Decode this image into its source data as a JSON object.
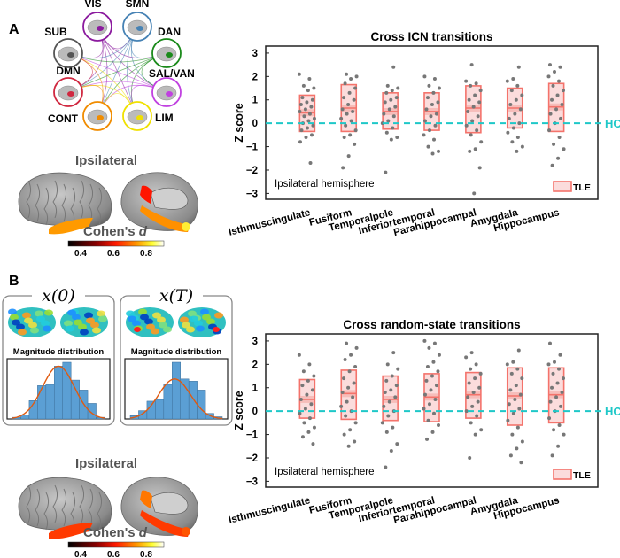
{
  "panel_a": {
    "label": "A",
    "networks": [
      {
        "name": "VIS",
        "color": "#8b1a9e"
      },
      {
        "name": "SMN",
        "color": "#4682b4"
      },
      {
        "name": "DAN",
        "color": "#1a8a1a"
      },
      {
        "name": "SAL/VAN",
        "color": "#c040e0"
      },
      {
        "name": "LIM",
        "color": "#f0e000"
      },
      {
        "name": "CONT",
        "color": "#f08c00"
      },
      {
        "name": "DMN",
        "color": "#d02840"
      },
      {
        "name": "SUB",
        "color": "#555555"
      }
    ],
    "brain_title": "Ipsilateral",
    "colorbar": {
      "label": "Cohen's ",
      "label_italic": "d",
      "ticks": [
        "0.4",
        "0.6",
        "0.8"
      ]
    }
  },
  "panel_b": {
    "label": "B",
    "state0_label": "x(0)",
    "stateT_label": "x(T)",
    "hist_title": "Magnitude distribution",
    "brain_title": "Ipsilateral",
    "colorbar": {
      "label": "Cohen's ",
      "label_italic": "d",
      "ticks": [
        "0.4",
        "0.6",
        "0.8"
      ]
    }
  },
  "colors": {
    "tle_box": "#f4736b",
    "tle_fill": "#fbdcdc",
    "hc_line": "#1ec8c8",
    "dots": "#777777",
    "hist_bar": "#5b9fd4",
    "hist_curve": "#e05a10"
  },
  "chart_data": [
    {
      "type": "box-scatter",
      "title": "Cross ICN transitions",
      "ylabel": "Z score",
      "ylim": [
        -3.25,
        3.3
      ],
      "yticks": [
        "3",
        "2",
        "1",
        "0",
        "−1",
        "−2",
        "−3"
      ],
      "ytick_values": [
        3,
        2,
        1,
        0,
        -1,
        -2,
        -3
      ],
      "annotation": "Ipsilateral hemisphere",
      "reference_line": {
        "label": "HC",
        "value": 0
      },
      "legend": {
        "label": "TLE",
        "placement": "bottom-right"
      },
      "categories": [
        "Isthmuscingulate",
        "Fusiform",
        "Temporalpole",
        "Inferiortemporal",
        "Parahippocampal",
        "Amygdala",
        "Hippocampus"
      ],
      "boxes": [
        {
          "low": -0.35,
          "median": 0.45,
          "high": 1.2
        },
        {
          "low": -0.35,
          "median": 0.65,
          "high": 1.65
        },
        {
          "low": -0.25,
          "median": 0.5,
          "high": 1.3
        },
        {
          "low": -0.3,
          "median": 0.5,
          "high": 1.3
        },
        {
          "low": -0.4,
          "median": 0.65,
          "high": 1.6
        },
        {
          "low": -0.2,
          "median": 0.65,
          "high": 1.5
        },
        {
          "low": -0.35,
          "median": 0.7,
          "high": 1.7
        }
      ],
      "points": [
        [
          2.1,
          1.9,
          1.6,
          1.5,
          1.4,
          1.1,
          1.0,
          0.9,
          0.8,
          0.7,
          0.6,
          0.5,
          0.4,
          0.3,
          0.2,
          0.1,
          0,
          -0.1,
          -0.2,
          -0.3,
          -0.5,
          -0.6,
          -0.8,
          -1.7
        ],
        [
          2.1,
          2.0,
          1.9,
          1.7,
          1.5,
          1.3,
          1.1,
          1.0,
          0.8,
          0.6,
          0.5,
          0.4,
          0.2,
          0.1,
          -0.1,
          -0.3,
          -0.5,
          -0.6,
          -0.9,
          -1.4,
          -1.9
        ],
        [
          2.4,
          1.6,
          1.5,
          1.4,
          1.3,
          1.1,
          1.0,
          0.9,
          0.7,
          0.6,
          0.4,
          0.3,
          0.1,
          0,
          -0.2,
          -0.4,
          -0.6,
          -0.7,
          -2.1
        ],
        [
          2.0,
          1.9,
          1.6,
          1.5,
          1.3,
          1.1,
          0.9,
          0.8,
          0.6,
          0.4,
          0.3,
          0.1,
          -0.1,
          -0.3,
          -0.5,
          -0.7,
          -1.0,
          -1.2,
          -1.3
        ],
        [
          2.5,
          1.8,
          1.7,
          1.6,
          1.4,
          1.2,
          1.0,
          0.9,
          0.7,
          0.5,
          0.3,
          0.1,
          -0.1,
          -0.3,
          -0.5,
          -0.8,
          -1.1,
          -1.2,
          -1.9,
          -3.0
        ],
        [
          2.4,
          1.9,
          1.8,
          1.6,
          1.4,
          1.2,
          1.0,
          0.8,
          0.6,
          0.4,
          0.2,
          0,
          -0.2,
          -0.4,
          -0.6,
          -0.8,
          -1.0,
          -1.2
        ],
        [
          2.5,
          2.4,
          2.2,
          2.0,
          1.8,
          1.6,
          1.4,
          1.2,
          1.0,
          0.8,
          0.6,
          0.4,
          0.2,
          0,
          -0.3,
          -0.6,
          -0.9,
          -1.1,
          -1.5,
          -1.8
        ]
      ]
    },
    {
      "type": "box-scatter",
      "title": "Cross random-state transitions",
      "ylabel": "Z score",
      "ylim": [
        -3.25,
        3.3
      ],
      "yticks": [
        "3",
        "2",
        "1",
        "0",
        "−1",
        "−2",
        "−3"
      ],
      "ytick_values": [
        3,
        2,
        1,
        0,
        -1,
        -2,
        -3
      ],
      "annotation": "Ipsilateral hemisphere",
      "reference_line": {
        "label": "HC",
        "value": 0
      },
      "legend": {
        "label": "TLE",
        "placement": "bottom-right"
      },
      "categories": [
        "Isthmuscingulate",
        "Fusiform",
        "Temporalpole",
        "Inferiortemporal",
        "Parahippocampal",
        "Amygdala",
        "Hippocampus"
      ],
      "boxes": [
        {
          "low": -0.3,
          "median": 0.5,
          "high": 1.35
        },
        {
          "low": -0.35,
          "median": 0.75,
          "high": 1.75
        },
        {
          "low": -0.4,
          "median": 0.5,
          "high": 1.5
        },
        {
          "low": -0.45,
          "median": 0.6,
          "high": 1.6
        },
        {
          "low": -0.3,
          "median": 0.7,
          "high": 1.65
        },
        {
          "low": -0.6,
          "median": 0.65,
          "high": 1.85
        },
        {
          "low": -0.5,
          "median": 0.7,
          "high": 1.85
        }
      ],
      "points": [
        [
          2.4,
          2.0,
          1.7,
          1.5,
          1.3,
          1.1,
          0.9,
          0.7,
          0.5,
          0.3,
          0.1,
          -0.1,
          -0.3,
          -0.5,
          -0.7,
          -0.9,
          -1.1,
          -1.4
        ],
        [
          2.9,
          2.7,
          2.4,
          2.2,
          1.9,
          1.7,
          1.4,
          1.2,
          1.0,
          0.8,
          0.6,
          0.4,
          0.2,
          0,
          -0.2,
          -0.5,
          -0.8,
          -1.0,
          -1.3,
          -1.5
        ],
        [
          2.5,
          2.0,
          1.8,
          1.5,
          1.3,
          1.1,
          0.9,
          0.8,
          0.6,
          0.4,
          0.2,
          0,
          -0.2,
          -0.5,
          -0.7,
          -0.9,
          -1.4,
          -1.7,
          -2.4
        ],
        [
          3.0,
          2.9,
          2.7,
          2.4,
          2.1,
          1.9,
          1.7,
          1.5,
          1.3,
          1.1,
          0.9,
          0.7,
          0.5,
          0.3,
          0.1,
          -0.1,
          -0.4,
          -0.6,
          -0.9,
          -1.2
        ],
        [
          2.5,
          2.3,
          2.0,
          1.8,
          1.6,
          1.4,
          1.2,
          1.0,
          0.8,
          0.6,
          0.4,
          0.2,
          0,
          -0.2,
          -0.5,
          -0.8,
          -1.0,
          -2.0
        ],
        [
          2.6,
          2.1,
          2.0,
          1.8,
          1.6,
          1.4,
          1.1,
          0.9,
          0.7,
          0.5,
          0.3,
          0.1,
          -0.1,
          -0.4,
          -0.7,
          -1.0,
          -1.3,
          -1.6,
          -1.9,
          -2.2
        ],
        [
          2.9,
          2.4,
          2.1,
          2.0,
          1.8,
          1.6,
          1.4,
          1.2,
          1.0,
          0.8,
          0.6,
          0.4,
          0.2,
          0,
          -0.3,
          -0.6,
          -0.8,
          -1.0,
          -1.5,
          -1.9
        ]
      ]
    },
    {
      "type": "bar",
      "title": "Magnitude distribution",
      "panel": "x(0)",
      "values": [
        0.03,
        0.07,
        0.33,
        0.6,
        0.62,
        0.95,
        1.02,
        0.7,
        0.52,
        0.28,
        0.03
      ],
      "fit": "normal"
    },
    {
      "type": "bar",
      "title": "Magnitude distribution",
      "panel": "x(T)",
      "values": [
        0.06,
        0.15,
        0.32,
        0.35,
        0.62,
        1.02,
        0.72,
        0.68,
        0.52,
        0.1,
        0.04
      ],
      "fit": "normal"
    }
  ]
}
